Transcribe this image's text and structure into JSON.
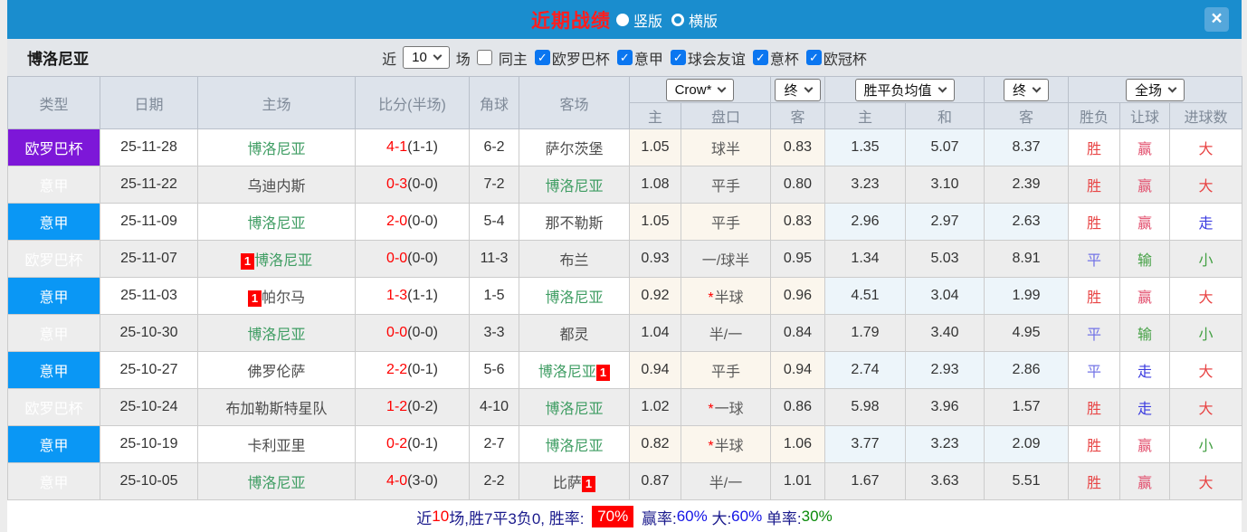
{
  "colors": {
    "titlebar_bg": "#1a8dce",
    "title_red": "#ff1e1e",
    "league_purple": "#7d17d8",
    "league_blue": "#0a97f5",
    "team_highlight_green": "#3f9d63",
    "score_red": "#ff0000",
    "odds_col_bg": "#fbf6ed",
    "avg_col_bg": "#edf5fa",
    "result_text": {
      "胜": "#e84545",
      "平": "#7273e6",
      "赢": "#e2506e",
      "输": "#44a044",
      "走": "#3c3ce0",
      "大": "#e84545",
      "小": "#44a044"
    }
  },
  "titlebar": {
    "title": "近期战绩",
    "radio_vertical": "竖版",
    "radio_horizontal": "横版",
    "close": "×"
  },
  "filter": {
    "team": "博洛尼亚",
    "near_label": "近",
    "near_value": "10",
    "games_label": "场",
    "same_home_label": "同主",
    "leagues": [
      "欧罗巴杯",
      "意甲",
      "球会友谊",
      "意杯",
      "欧冠杯"
    ]
  },
  "table": {
    "selects": {
      "bookmaker": "Crow*",
      "period1": "终",
      "avg": "胜平负均值",
      "period2": "终",
      "scope": "全场"
    },
    "headers": {
      "type": "类型",
      "date": "日期",
      "home": "主场",
      "score": "比分(半场)",
      "corners": "角球",
      "away": "客场",
      "odds_home": "主",
      "handicap": "盘口",
      "odds_away": "客",
      "avg_home": "主",
      "avg_draw": "和",
      "avg_away": "客",
      "wdl": "胜负",
      "handicap_result": "让球",
      "goals": "进球数"
    },
    "rows": [
      {
        "type": "欧罗巴杯",
        "type_color": "purple",
        "date": "25-11-28",
        "home": {
          "name": "博洛尼亚",
          "highlight": true
        },
        "score_ft": "4-1",
        "score_ht": "(1-1)",
        "corners": "6-2",
        "away": {
          "name": "萨尔茨堡"
        },
        "odds": [
          "1.05",
          "球半",
          "0.83"
        ],
        "avg": [
          "1.35",
          "5.07",
          "8.37"
        ],
        "results": [
          "胜",
          "赢",
          "大"
        ]
      },
      {
        "type": "意甲",
        "type_color": "blue",
        "date": "25-11-22",
        "home": {
          "name": "乌迪内斯"
        },
        "score_ft": "0-3",
        "score_ht": "(0-0)",
        "corners": "7-2",
        "away": {
          "name": "博洛尼亚",
          "highlight": true
        },
        "odds": [
          "1.08",
          "平手",
          "0.80"
        ],
        "avg": [
          "3.23",
          "3.10",
          "2.39"
        ],
        "results": [
          "胜",
          "赢",
          "大"
        ]
      },
      {
        "type": "意甲",
        "type_color": "blue",
        "date": "25-11-09",
        "home": {
          "name": "博洛尼亚",
          "highlight": true
        },
        "score_ft": "2-0",
        "score_ht": "(0-0)",
        "corners": "5-4",
        "away": {
          "name": "那不勒斯"
        },
        "odds": [
          "1.05",
          "平手",
          "0.83"
        ],
        "avg": [
          "2.96",
          "2.97",
          "2.63"
        ],
        "results": [
          "胜",
          "赢",
          "走"
        ]
      },
      {
        "type": "欧罗巴杯",
        "type_color": "purple",
        "date": "25-11-07",
        "home": {
          "name": "博洛尼亚",
          "highlight": true,
          "badge": "1"
        },
        "score_ft": "0-0",
        "score_ht": "(0-0)",
        "corners": "11-3",
        "away": {
          "name": "布兰"
        },
        "odds": [
          "0.93",
          "一/球半",
          "0.95"
        ],
        "avg": [
          "1.34",
          "5.03",
          "8.91"
        ],
        "results": [
          "平",
          "输",
          "小"
        ]
      },
      {
        "type": "意甲",
        "type_color": "blue",
        "date": "25-11-03",
        "home": {
          "name": "帕尔马",
          "badge": "1"
        },
        "score_ft": "1-3",
        "score_ht": "(1-1)",
        "corners": "1-5",
        "away": {
          "name": "博洛尼亚",
          "highlight": true
        },
        "odds": [
          "0.92",
          "*半球",
          "0.96"
        ],
        "avg": [
          "4.51",
          "3.04",
          "1.99"
        ],
        "results": [
          "胜",
          "赢",
          "大"
        ]
      },
      {
        "type": "意甲",
        "type_color": "blue",
        "date": "25-10-30",
        "home": {
          "name": "博洛尼亚",
          "highlight": true
        },
        "score_ft": "0-0",
        "score_ht": "(0-0)",
        "corners": "3-3",
        "away": {
          "name": "都灵"
        },
        "odds": [
          "1.04",
          "半/一",
          "0.84"
        ],
        "avg": [
          "1.79",
          "3.40",
          "4.95"
        ],
        "results": [
          "平",
          "输",
          "小"
        ]
      },
      {
        "type": "意甲",
        "type_color": "blue",
        "date": "25-10-27",
        "home": {
          "name": "佛罗伦萨"
        },
        "score_ft": "2-2",
        "score_ht": "(0-1)",
        "corners": "5-6",
        "away": {
          "name": "博洛尼亚",
          "highlight": true,
          "badge": "1"
        },
        "odds": [
          "0.94",
          "平手",
          "0.94"
        ],
        "avg": [
          "2.74",
          "2.93",
          "2.86"
        ],
        "results": [
          "平",
          "走",
          "大"
        ]
      },
      {
        "type": "欧罗巴杯",
        "type_color": "purple",
        "date": "25-10-24",
        "home": {
          "name": "布加勒斯特星队"
        },
        "score_ft": "1-2",
        "score_ht": "(0-2)",
        "corners": "4-10",
        "away": {
          "name": "博洛尼亚",
          "highlight": true
        },
        "odds": [
          "1.02",
          "*一球",
          "0.86"
        ],
        "avg": [
          "5.98",
          "3.96",
          "1.57"
        ],
        "results": [
          "胜",
          "走",
          "大"
        ]
      },
      {
        "type": "意甲",
        "type_color": "blue",
        "date": "25-10-19",
        "home": {
          "name": "卡利亚里"
        },
        "score_ft": "0-2",
        "score_ht": "(0-1)",
        "corners": "2-7",
        "away": {
          "name": "博洛尼亚",
          "highlight": true
        },
        "odds": [
          "0.82",
          "*半球",
          "1.06"
        ],
        "avg": [
          "3.77",
          "3.23",
          "2.09"
        ],
        "results": [
          "胜",
          "赢",
          "小"
        ]
      },
      {
        "type": "意甲",
        "type_color": "blue",
        "date": "25-10-05",
        "home": {
          "name": "博洛尼亚",
          "highlight": true
        },
        "score_ft": "4-0",
        "score_ht": "(3-0)",
        "corners": "2-2",
        "away": {
          "name": "比萨",
          "badge": "1"
        },
        "odds": [
          "0.87",
          "半/一",
          "1.01"
        ],
        "avg": [
          "1.67",
          "3.63",
          "5.51"
        ],
        "results": [
          "胜",
          "赢",
          "大"
        ]
      }
    ]
  },
  "footer": {
    "segments": [
      {
        "t": "近",
        "s": "navy"
      },
      {
        "t": "10",
        "s": "red"
      },
      {
        "t": "场,胜7平3负0, 胜率: ",
        "s": "navy"
      },
      {
        "t": "70%",
        "s": "chip"
      },
      {
        "t": " 赢率:",
        "s": "navy"
      },
      {
        "t": "60%",
        "s": "blue"
      },
      {
        "t": " 大:",
        "s": "navy"
      },
      {
        "t": "60%",
        "s": "blue"
      },
      {
        "t": " 单率:",
        "s": "navy"
      },
      {
        "t": "30%",
        "s": "green"
      }
    ]
  }
}
